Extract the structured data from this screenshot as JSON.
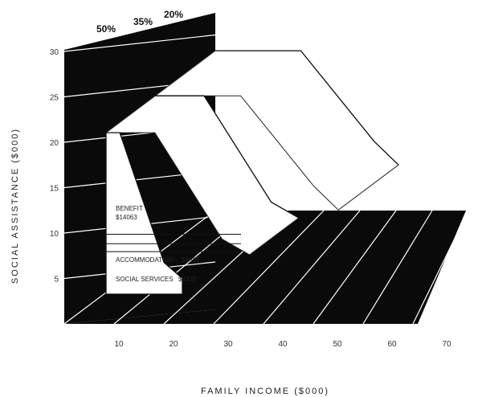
{
  "chart_data": {
    "type": "area",
    "title": "",
    "xlabel": "FAMILY INCOME ($000)",
    "ylabel": "SOCIAL ASSISTANCE ($000)",
    "x_ticks": [
      "10",
      "20",
      "30",
      "40",
      "50",
      "60",
      "70"
    ],
    "y_ticks": [
      "5",
      "10",
      "15",
      "20",
      "25",
      "30"
    ],
    "xlim": [
      0,
      70
    ],
    "ylim": [
      0,
      30
    ],
    "depth_labels": [
      "50%",
      "35%",
      "20%"
    ],
    "components": [
      {
        "label": "BENEFIT",
        "amount": "$14063"
      },
      {
        "label": "ACCOMMODATION",
        "amount": "$1090"
      },
      {
        "label": "SOCIAL SERVICES",
        "amount": "$3328"
      }
    ],
    "series": [
      {
        "name": "50%",
        "x": [
          0,
          4.5,
          19,
          25
        ],
        "y": [
          20.5,
          20.5,
          4,
          2
        ]
      },
      {
        "name": "35%",
        "x": [
          0,
          16,
          38,
          47
        ],
        "y": [
          20.5,
          20.5,
          7,
          5
        ]
      },
      {
        "name": "20%",
        "x": [
          0,
          28,
          52,
          60
        ],
        "y": [
          20.5,
          20.5,
          9,
          6
        ]
      }
    ],
    "grid": true,
    "colors": {
      "background_plane": "#000000",
      "surface": "#ffffff",
      "grid": "#ffffff"
    }
  }
}
